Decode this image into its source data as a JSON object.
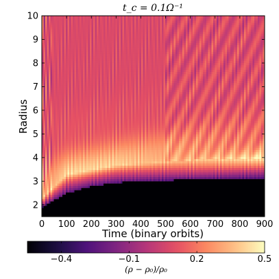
{
  "chart_data": {
    "type": "heatmap",
    "title": "t_c = 0.1Ω⁻¹",
    "xlabel": "Time (binary orbits)",
    "ylabel": "Radius",
    "xlim": [
      0,
      900
    ],
    "ylim": [
      1.5,
      10
    ],
    "x_ticks": [
      0,
      100,
      200,
      300,
      400,
      500,
      600,
      700,
      800,
      900
    ],
    "y_ticks": [
      2,
      3,
      4,
      5,
      6,
      7,
      8,
      9,
      10
    ],
    "colormap": "magma",
    "colorbar": {
      "label": "(ρ − ρ₀)/ρ₀",
      "range": [
        -0.55,
        0.5
      ],
      "ticks": [
        -0.4,
        -0.1,
        0.2,
        0.5
      ],
      "tick_labels": [
        "−0.4",
        "−0.1",
        "0.2",
        "0.5"
      ],
      "orientation": "horizontal",
      "placement": "bottom"
    },
    "features": {
      "cavity_value": -0.55,
      "cavity_edge_radius": [
        {
          "time": 0,
          "radius": 1.9
        },
        {
          "time": 50,
          "radius": 2.2
        },
        {
          "time": 100,
          "radius": 2.5
        },
        {
          "time": 200,
          "radius": 2.8
        },
        {
          "time": 300,
          "radius": 2.95
        },
        {
          "time": 500,
          "radius": 3.05
        },
        {
          "time": 700,
          "radius": 3.1
        },
        {
          "time": 900,
          "radius": 3.15
        }
      ],
      "ring_peak_radius": [
        {
          "time": 0,
          "radius": 2.3
        },
        {
          "time": 100,
          "radius": 3.3
        },
        {
          "time": 300,
          "radius": 3.7
        },
        {
          "time": 500,
          "radius": 3.85
        },
        {
          "time": 700,
          "radius": 3.95
        },
        {
          "time": 900,
          "radius": 4.0
        }
      ],
      "ring_peak_value": 0.5,
      "background_value": 0.08
    }
  }
}
